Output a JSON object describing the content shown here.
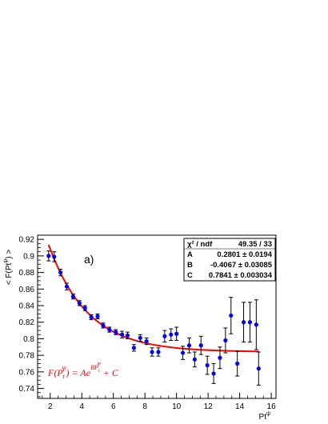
{
  "chart_data": {
    "type": "scatter",
    "panel_label": "a)",
    "xlabel": "Pt",
    "xlabel_sup": "ψ",
    "ylabel": "< F(Pt",
    "ylabel_sup": "ψ",
    "ylabel_tail": ") >",
    "xlim": [
      1.2,
      16.3
    ],
    "ylim": [
      0.728,
      0.925
    ],
    "x_ticks": [
      2,
      4,
      6,
      8,
      10,
      12,
      14,
      16
    ],
    "y_ticks": [
      0.74,
      0.76,
      0.78,
      0.8,
      0.82,
      0.84,
      0.86,
      0.88,
      0.9,
      0.92
    ],
    "x_tick_labels": [
      "2",
      "4",
      "6",
      "8",
      "10",
      "12",
      "14",
      "16"
    ],
    "y_tick_labels": [
      "0.74",
      "0.76",
      "0.78",
      "0.8",
      "0.82",
      "0.84",
      "0.86",
      "0.88",
      "0.9",
      "0.92"
    ],
    "colors": {
      "points": "#0000ff",
      "fit": "#ff0000",
      "axis": "#000000"
    },
    "series": [
      {
        "x": [
          1.9,
          2.25,
          2.65,
          3.05,
          3.45,
          3.85,
          4.2,
          4.6,
          5.0,
          5.35,
          5.75,
          6.15,
          6.55,
          6.9,
          7.3,
          7.7,
          8.1,
          8.45,
          8.85,
          9.25,
          9.65,
          10.0,
          10.4,
          10.8,
          11.15,
          11.55,
          11.95,
          12.35,
          12.75,
          13.1,
          13.45,
          13.85,
          14.25,
          14.65,
          15.05
        ],
        "y": [
          0.9,
          0.899,
          0.88,
          0.863,
          0.851,
          0.843,
          0.837,
          0.826,
          0.827,
          0.816,
          0.811,
          0.808,
          0.805,
          0.804,
          0.789,
          0.801,
          0.797,
          0.784,
          0.784,
          0.803,
          0.805,
          0.806,
          0.783,
          0.792,
          0.775,
          0.792,
          0.768,
          0.758,
          0.777,
          0.798,
          0.828,
          0.77,
          0.82,
          0.82,
          0.817
        ],
        "yerr": [
          0.006,
          0.006,
          0.004,
          0.004,
          0.003,
          0.003,
          0.003,
          0.003,
          0.003,
          0.003,
          0.003,
          0.003,
          0.004,
          0.004,
          0.004,
          0.004,
          0.004,
          0.005,
          0.005,
          0.007,
          0.007,
          0.008,
          0.008,
          0.009,
          0.009,
          0.011,
          0.011,
          0.012,
          0.013,
          0.015,
          0.022,
          0.015,
          0.024,
          0.024,
          0.03
        ]
      }
    ],
    "extra_points": [
      {
        "x": 15.2,
        "y": 0.764,
        "yerr": 0.02
      }
    ],
    "fit": {
      "function": "A*exp(B*x)+C",
      "A": 0.2801,
      "B": -0.4067,
      "C": 0.7841,
      "x_range": [
        1.9,
        15.2
      ]
    },
    "stats_box": {
      "rows": [
        {
          "name": "χ² / ndf",
          "value": "49.35 / 33"
        },
        {
          "name": "A",
          "value": "0.2801 ± 0.0194"
        },
        {
          "name": "B",
          "value": "-0.4067 ± 0.03085"
        },
        {
          "name": "C",
          "value": "0.7841 ± 0.003034"
        }
      ]
    },
    "formula": {
      "lhs": "F(P",
      "lhs_sub": "t",
      "lhs_sup": "Ψ",
      "mid": ") = Ae",
      "exp": "BP",
      "exp_sub": "t",
      "exp_sup": "Ψ",
      "rhs": " + C"
    }
  }
}
